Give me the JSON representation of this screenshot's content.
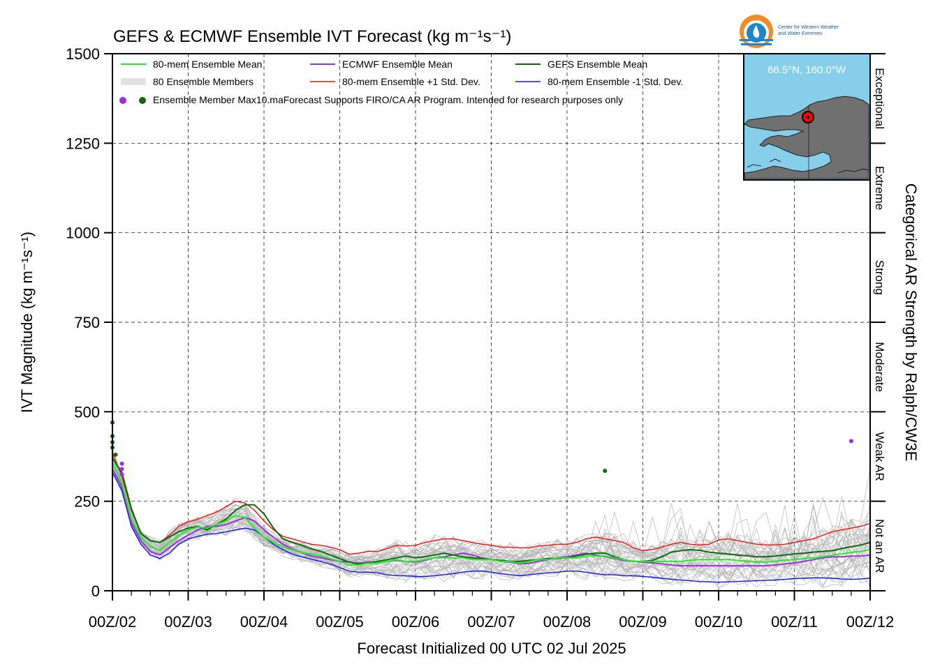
{
  "title": "GEFS & ECMWF Ensemble IVT Forecast (kg m⁻¹s⁻¹)",
  "logo": {
    "line1": "Center for Western Weather",
    "line2": "and Water Extremes"
  },
  "inset": {
    "location": "66.5°N, 160.0°W"
  },
  "footer_note": "Forecast Supports FIRO/CA AR Program. Intended for research purposes only",
  "categories_axis_label": "Categorical AR Strength by Ralph/CW3E",
  "ar_categories": [
    {
      "label": "Not an AR",
      "from": 0,
      "to": 250
    },
    {
      "label": "Weak AR",
      "from": 250,
      "to": 500
    },
    {
      "label": "Moderate",
      "from": 500,
      "to": 750
    },
    {
      "label": "Strong",
      "from": 750,
      "to": 1000
    },
    {
      "label": "Extreme",
      "from": 1000,
      "to": 1250
    },
    {
      "label": "Exceptional",
      "from": 1250,
      "to": 1500
    }
  ],
  "legend": {
    "items": [
      {
        "label": "80-mem Ensemble Mean",
        "color": "#22ee22",
        "style": "line"
      },
      {
        "label": "ECMWF Ensemble Mean",
        "color": "#9b30e0",
        "style": "line"
      },
      {
        "label": "GEFS Ensemble Mean",
        "color": "#0b6b0b",
        "style": "line"
      },
      {
        "label": "80 Ensemble Members",
        "color": "#b0b0b0",
        "style": "members"
      },
      {
        "label": "80-mem Ensemble +1 Std. Dev.",
        "color": "#ee1111",
        "style": "line"
      },
      {
        "label": "80-mem Ensemble -1 Std. Dev.",
        "color": "#1111ee",
        "style": "line"
      },
      {
        "label": "Ensemble Member Max10.ma",
        "colors": [
          "#9b30e0",
          "#0b6b0b"
        ],
        "style": "dots"
      }
    ]
  },
  "chart_data": {
    "type": "line",
    "title": "GEFS & ECMWF Ensemble IVT Forecast (kg m⁻¹s⁻¹)",
    "xlabel": "Forecast Initialized 00 UTC 02 Jul 2025",
    "ylabel": "IVT Magnitude (kg m⁻¹s⁻¹)",
    "ylim": [
      0,
      1500
    ],
    "xlim": [
      0,
      240
    ],
    "x_unit": "forecast hour",
    "yticks": [
      0,
      250,
      500,
      750,
      1000,
      1250,
      1500
    ],
    "xticks": [
      {
        "hour": 0,
        "label": "00Z/02"
      },
      {
        "hour": 24,
        "label": "00Z/03"
      },
      {
        "hour": 48,
        "label": "00Z/04"
      },
      {
        "hour": 72,
        "label": "00Z/05"
      },
      {
        "hour": 96,
        "label": "00Z/06"
      },
      {
        "hour": 120,
        "label": "00Z/07"
      },
      {
        "hour": 144,
        "label": "00Z/08"
      },
      {
        "hour": 168,
        "label": "00Z/09"
      },
      {
        "hour": 192,
        "label": "00Z/10"
      },
      {
        "hour": 216,
        "label": "00Z/11"
      },
      {
        "hour": 240,
        "label": "00Z/12"
      }
    ],
    "grid": true,
    "legend_position": "top-left",
    "x": [
      0,
      3,
      6,
      9,
      12,
      15,
      18,
      21,
      24,
      27,
      30,
      33,
      36,
      39,
      42,
      45,
      48,
      51,
      54,
      57,
      60,
      63,
      66,
      69,
      72,
      75,
      78,
      81,
      84,
      87,
      90,
      93,
      96,
      99,
      102,
      105,
      108,
      111,
      114,
      117,
      120,
      123,
      126,
      129,
      132,
      135,
      138,
      141,
      144,
      147,
      150,
      153,
      156,
      159,
      162,
      165,
      168,
      171,
      174,
      177,
      180,
      183,
      186,
      189,
      192,
      195,
      198,
      201,
      204,
      207,
      210,
      213,
      216,
      219,
      222,
      225,
      228,
      231,
      234,
      237,
      240
    ],
    "series": [
      {
        "name": "80-mem Ensemble Mean",
        "color": "#22ee22",
        "width": 2,
        "values": [
          360,
          300,
          200,
          150,
          125,
          112,
          135,
          155,
          170,
          178,
          175,
          185,
          195,
          210,
          205,
          175,
          150,
          135,
          122,
          115,
          107,
          102,
          97,
          90,
          82,
          72,
          72,
          77,
          77,
          82,
          87,
          82,
          82,
          87,
          92,
          92,
          92,
          92,
          87,
          87,
          87,
          82,
          82,
          77,
          82,
          87,
          87,
          92,
          92,
          92,
          97,
          97,
          97,
          92,
          87,
          82,
          82,
          82,
          82,
          82,
          82,
          85,
          87,
          87,
          87,
          87,
          85,
          82,
          80,
          80,
          82,
          85,
          87,
          90,
          92,
          95,
          100,
          103,
          107,
          110,
          115
        ]
      },
      {
        "name": "ECMWF Ensemble Mean",
        "color": "#9b30e0",
        "width": 2,
        "values": [
          340,
          290,
          190,
          140,
          110,
          100,
          120,
          140,
          155,
          170,
          180,
          180,
          185,
          195,
          205,
          195,
          170,
          150,
          130,
          117,
          107,
          97,
          92,
          87,
          82,
          80,
          77,
          80,
          77,
          82,
          85,
          82,
          80,
          85,
          92,
          95,
          100,
          105,
          100,
          92,
          87,
          82,
          80,
          75,
          77,
          82,
          87,
          92,
          95,
          100,
          105,
          100,
          95,
          90,
          85,
          82,
          80,
          78,
          75,
          72,
          70,
          70,
          70,
          70,
          70,
          70,
          70,
          70,
          70,
          70,
          72,
          75,
          78,
          82,
          87,
          92,
          95,
          95,
          97,
          97,
          100
        ]
      },
      {
        "name": "GEFS Ensemble Mean",
        "color": "#0b6b0b",
        "width": 2,
        "values": [
          370,
          330,
          230,
          160,
          140,
          135,
          150,
          165,
          175,
          180,
          170,
          185,
          200,
          225,
          240,
          240,
          215,
          175,
          145,
          135,
          127,
          117,
          110,
          100,
          90,
          80,
          75,
          78,
          82,
          87,
          92,
          97,
          92,
          95,
          100,
          105,
          100,
          95,
          92,
          90,
          87,
          85,
          82,
          82,
          85,
          87,
          90,
          90,
          92,
          97,
          102,
          105,
          105,
          95,
          87,
          82,
          82,
          85,
          95,
          108,
          112,
          115,
          113,
          108,
          105,
          103,
          100,
          98,
          95,
          95,
          97,
          100,
          103,
          105,
          108,
          110,
          112,
          118,
          123,
          128,
          135
        ]
      },
      {
        "name": "80-mem Ensemble +1 Std. Dev.",
        "color": "#ee1111",
        "width": 1.4,
        "values": [
          385,
          320,
          225,
          160,
          140,
          135,
          155,
          180,
          192,
          200,
          210,
          220,
          235,
          250,
          245,
          225,
          195,
          170,
          152,
          145,
          137,
          130,
          127,
          122,
          115,
          102,
          105,
          110,
          110,
          118,
          127,
          125,
          127,
          135,
          140,
          145,
          145,
          140,
          135,
          130,
          127,
          122,
          122,
          120,
          120,
          125,
          127,
          130,
          130,
          135,
          145,
          150,
          145,
          140,
          135,
          120,
          112,
          115,
          122,
          130,
          135,
          130,
          128,
          130,
          142,
          145,
          140,
          135,
          130,
          128,
          128,
          130,
          135,
          140,
          145,
          155,
          165,
          170,
          175,
          180,
          188
        ]
      },
      {
        "name": "80-mem Ensemble -1 Std. Dev.",
        "color": "#1111ee",
        "width": 1.4,
        "values": [
          330,
          280,
          180,
          130,
          100,
          90,
          105,
          130,
          145,
          152,
          158,
          160,
          165,
          170,
          175,
          170,
          150,
          130,
          115,
          102,
          95,
          88,
          82,
          75,
          65,
          55,
          52,
          52,
          50,
          45,
          42,
          42,
          40,
          40,
          42,
          45,
          48,
          52,
          55,
          55,
          52,
          48,
          45,
          42,
          45,
          48,
          50,
          52,
          55,
          55,
          52,
          48,
          45,
          45,
          42,
          42,
          40,
          38,
          35,
          32,
          30,
          28,
          26,
          25,
          24,
          25,
          26,
          27,
          28,
          29,
          30,
          32,
          34,
          35,
          36,
          36,
          35,
          33,
          32,
          33,
          35
        ]
      }
    ],
    "max_markers": [
      {
        "x": 0,
        "y": 470,
        "color": "#0b6b0b"
      },
      {
        "x": 0,
        "y": 432,
        "color": "#0b6b0b"
      },
      {
        "x": 0,
        "y": 415,
        "color": "#0b6b0b"
      },
      {
        "x": 0,
        "y": 400,
        "color": "#0b6b0b"
      },
      {
        "x": 1,
        "y": 380,
        "color": "#0b6b0b"
      },
      {
        "x": 3,
        "y": 355,
        "color": "#9b30e0"
      },
      {
        "x": 3,
        "y": 340,
        "color": "#9b30e0"
      },
      {
        "x": 3,
        "y": 325,
        "color": "#9b30e0"
      },
      {
        "x": 156,
        "y": 335,
        "color": "#0b6b0b"
      },
      {
        "x": 234,
        "y": 418,
        "color": "#9b30e0"
      }
    ]
  }
}
